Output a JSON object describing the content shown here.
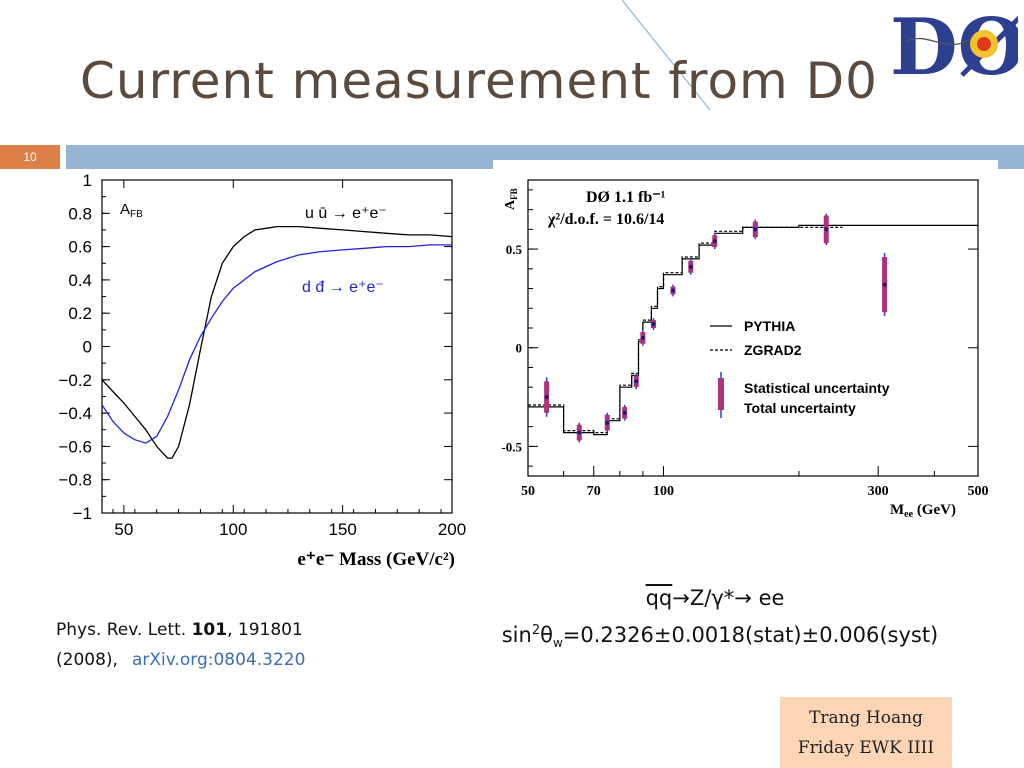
{
  "slide": {
    "title": "Current measurement from D0",
    "number": "10",
    "logo_text": "DØ",
    "colors": {
      "accent": "#dd8047",
      "bar": "#94b6d2",
      "title": "#5c4a3c",
      "link": "#3a6fb0",
      "footer_bg": "#fbd5b5"
    }
  },
  "reference": {
    "journal": "Phys. Rev. Lett.",
    "volume": "101",
    "article": ", 191801",
    "year": "(2008),",
    "link_text": "arXiv.org:0804.3220"
  },
  "process": {
    "quarks": "qq",
    "arrow1": "→",
    "boson": "Z/γ*",
    "arrow2": "→",
    "leptons": "ee"
  },
  "result": {
    "sin": "sin",
    "sup": "2",
    "theta": "θ",
    "sub": "w",
    "value": "=0.2326±0.0018(stat)±0.006(syst)"
  },
  "footer": {
    "name": "Trang Hoang",
    "event": "Friday EWK IIII"
  },
  "chart_data": [
    {
      "type": "line",
      "title": "",
      "annotation": "A",
      "annotation_sub": "FB",
      "xlabel": "e⁺e⁻ Mass (GeV/c²)",
      "ylabel": "",
      "xlim": [
        40,
        200
      ],
      "ylim": [
        -1,
        1
      ],
      "x_ticks": [
        "50",
        "100",
        "150",
        "200"
      ],
      "y_ticks": [
        "1",
        "0.8",
        "0.6",
        "0.4",
        "0.2",
        "0",
        "−0.2",
        "−0.4",
        "−0.6",
        "−0.8",
        "−1"
      ],
      "series": [
        {
          "name": "u ū → e⁺e⁻",
          "color": "#000000",
          "x": [
            40,
            45,
            50,
            55,
            60,
            65,
            70,
            72,
            75,
            80,
            85,
            90,
            95,
            100,
            105,
            110,
            115,
            120,
            130,
            140,
            150,
            160,
            170,
            180,
            190,
            200
          ],
          "y": [
            -0.2,
            -0.27,
            -0.34,
            -0.42,
            -0.5,
            -0.6,
            -0.67,
            -0.67,
            -0.6,
            -0.35,
            -0.02,
            0.3,
            0.5,
            0.6,
            0.66,
            0.7,
            0.71,
            0.72,
            0.72,
            0.71,
            0.7,
            0.69,
            0.68,
            0.67,
            0.67,
            0.66
          ]
        },
        {
          "name": "d đ → e⁺e⁻",
          "color": "#2222dd",
          "x": [
            40,
            45,
            50,
            55,
            60,
            65,
            70,
            75,
            80,
            85,
            90,
            95,
            100,
            110,
            120,
            130,
            140,
            150,
            160,
            170,
            180,
            190,
            200
          ],
          "y": [
            -0.35,
            -0.45,
            -0.52,
            -0.56,
            -0.58,
            -0.54,
            -0.42,
            -0.26,
            -0.08,
            0.06,
            0.17,
            0.27,
            0.35,
            0.45,
            0.51,
            0.55,
            0.57,
            0.58,
            0.59,
            0.6,
            0.6,
            0.61,
            0.61
          ]
        }
      ]
    },
    {
      "type": "scatter",
      "title": "DØ 1.1 fb⁻¹",
      "subtitle": "χ²/d.o.f. = 10.6/14",
      "xlabel": "M",
      "xlabel_sub": "ee",
      "xlabel_unit": " (GeV)",
      "ylabel": "A",
      "ylabel_sub": "FB",
      "x_scale": "log",
      "xlim": [
        50,
        500
      ],
      "ylim": [
        -0.65,
        0.85
      ],
      "x_ticks": [
        "50",
        "70",
        "100",
        "300",
        "500"
      ],
      "y_ticks": [
        "0.5",
        "0",
        "-0.5"
      ],
      "legend": [
        "PYTHIA",
        "ZGRAD2",
        "Statistical uncertainty",
        "Total uncertainty"
      ],
      "data": {
        "x": [
          55,
          65,
          75,
          82,
          87,
          90,
          95,
          105,
          115,
          130,
          160,
          230,
          310
        ],
        "y": [
          -0.25,
          -0.43,
          -0.38,
          -0.33,
          -0.17,
          0.05,
          0.12,
          0.29,
          0.41,
          0.54,
          0.6,
          0.6,
          0.32
        ],
        "stat_err": [
          0.08,
          0.04,
          0.04,
          0.03,
          0.03,
          0.03,
          0.02,
          0.02,
          0.03,
          0.03,
          0.04,
          0.07,
          0.14
        ],
        "total_err": [
          0.1,
          0.05,
          0.05,
          0.04,
          0.04,
          0.04,
          0.03,
          0.03,
          0.04,
          0.04,
          0.05,
          0.08,
          0.16
        ]
      },
      "pythia_step": {
        "edges": [
          50,
          60,
          70,
          75,
          80,
          85,
          88,
          90,
          94,
          97,
          100,
          110,
          120,
          130,
          150,
          200,
          400,
          500
        ],
        "values": [
          -0.3,
          -0.43,
          -0.44,
          -0.37,
          -0.2,
          -0.14,
          0.03,
          0.13,
          0.2,
          0.3,
          0.37,
          0.45,
          0.52,
          0.58,
          0.61,
          0.62,
          0.62
        ]
      },
      "zgrad_step": {
        "edges": [
          50,
          60,
          70,
          75,
          80,
          85,
          88,
          90,
          94,
          97,
          100,
          110,
          120,
          130,
          150,
          200,
          250
        ],
        "values": [
          -0.29,
          -0.42,
          -0.43,
          -0.36,
          -0.19,
          -0.13,
          0.04,
          0.14,
          0.21,
          0.31,
          0.38,
          0.46,
          0.53,
          0.59,
          0.61,
          0.61
        ]
      }
    }
  ]
}
